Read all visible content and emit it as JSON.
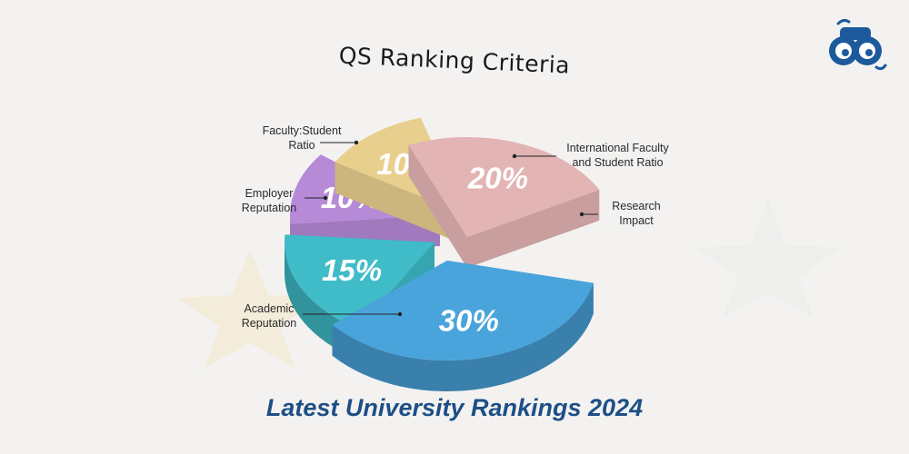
{
  "header": {
    "title": "QS Ranking Criteria"
  },
  "footer": {
    "title": "Latest University Rankings 2024"
  },
  "logo": {
    "icon": "binoculars-icon",
    "color": "#1d5a9c"
  },
  "chart_data": {
    "type": "pie",
    "title": "QS Ranking Criteria",
    "slices": [
      {
        "name": "Academic Reputation",
        "value": 30,
        "label": "30%",
        "color": "#4aa4dc"
      },
      {
        "name": "Employer Reputation",
        "value": 15,
        "label": "15%",
        "color": "#3fbcc8"
      },
      {
        "name": "Faculty:Student Ratio",
        "value": 10,
        "label": "10%",
        "color": "#b78ad8"
      },
      {
        "name": "International Faculty and Student Ratio",
        "value": 10,
        "label": "10%",
        "color": "#e9cf8e"
      },
      {
        "name": "Research Impact",
        "value": 20,
        "label": "20%",
        "color": "#e3b4b4"
      }
    ],
    "callouts": {
      "faculty": {
        "line1": "Faculty:Student",
        "line2": "Ratio"
      },
      "employer": {
        "line1": "Employer",
        "line2": "Reputation"
      },
      "academic": {
        "line1": "Academic",
        "line2": "Reputation"
      },
      "international": {
        "line1": "International Faculty",
        "line2": "and Student Ratio"
      },
      "research": {
        "line1": "Research",
        "line2": "Impact"
      }
    }
  }
}
